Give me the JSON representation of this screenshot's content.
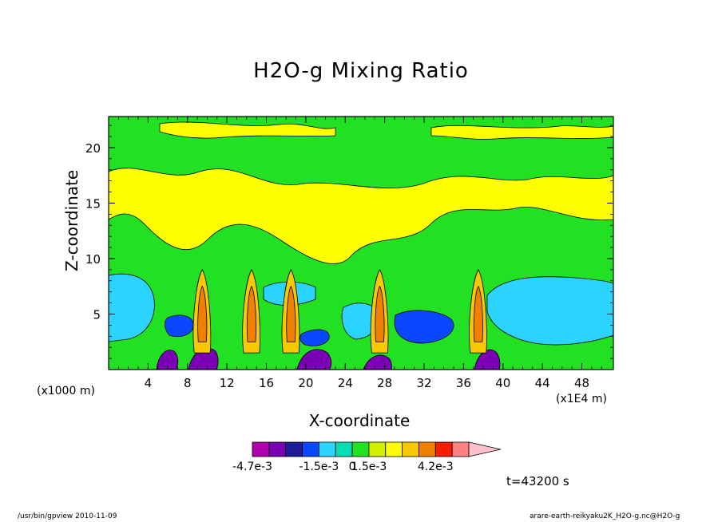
{
  "chart_data": {
    "type": "heatmap",
    "title": "H2O-g Mixing Ratio",
    "xlabel": "X-coordinate",
    "ylabel": "Z-coordinate",
    "x_unit": "(x1E4 m)",
    "y_unit": "(x1000 m)",
    "xlim": [
      0,
      51.2
    ],
    "ylim": [
      0,
      22.8
    ],
    "x_ticks": [
      "4",
      "8",
      "12",
      "16",
      "20",
      "24",
      "28",
      "32",
      "36",
      "40",
      "44",
      "48"
    ],
    "y_ticks": [
      "5",
      "10",
      "15",
      "20"
    ],
    "colorbar": {
      "tick_labels": [
        "-4.7e-3",
        "-1.5e-3",
        "0",
        "1.5e-3",
        "4.2e-3"
      ],
      "levels": [
        -0.0047,
        -0.0039,
        -0.0031,
        -0.0023,
        -0.0015,
        -0.0008,
        0,
        0.0008,
        0.0015,
        0.0023,
        0.0031,
        0.0039,
        0.0042
      ],
      "colors": [
        "#b000b0",
        "#7a00b4",
        "#1c1c96",
        "#0a48ff",
        "#2ad4ff",
        "#00e0b4",
        "#22e022",
        "#d0f000",
        "#ffff00",
        "#f8c800",
        "#f08000",
        "#f81c00",
        "#ff8080",
        "#ffc0cc"
      ]
    },
    "plumes_x": [
      9.5,
      14.5,
      18.5,
      27.5,
      37.5
    ],
    "time_label": "t=43200 s"
  },
  "footer": {
    "left": "/usr/bin/gpview   2010-11-09",
    "right": "arare-earth-reikyaku2K_H2O-g.nc@H2O-g"
  }
}
